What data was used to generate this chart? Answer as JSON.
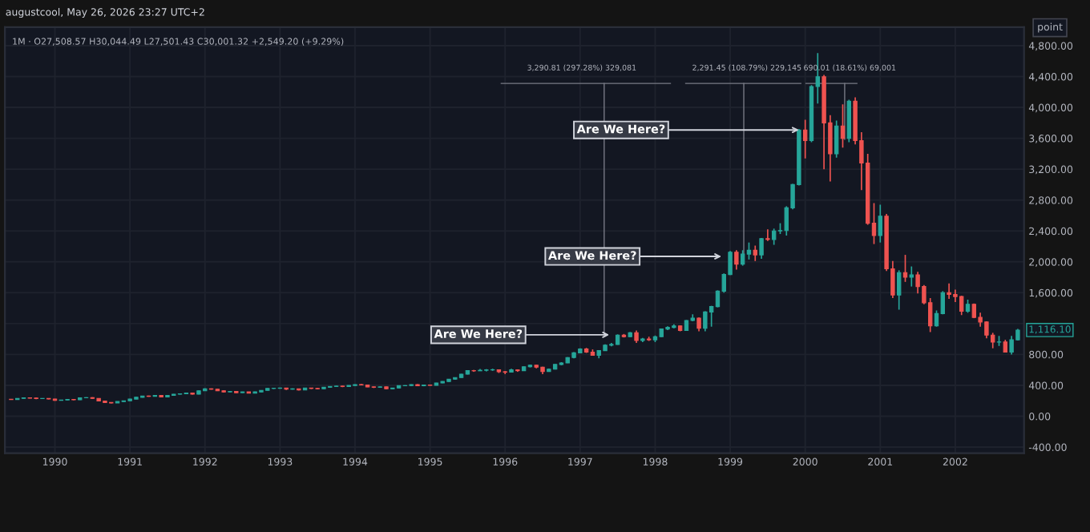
{
  "chart_data": {
    "type": "candlestick",
    "title": "augustcool, May 26, 2026 23:27 UTC+2",
    "subtitle": "1M · O27,508.57 H30,044.49 L27,501.43 C30,001.32 +2,549.20 (+9.29%)",
    "x": [
      "1989-06",
      "1989-07",
      "1989-08",
      "1989-09",
      "1989-10",
      "1989-11",
      "1989-12",
      "1990-01",
      "1990-02",
      "1990-03",
      "1990-04",
      "1990-05",
      "1990-06",
      "1990-07",
      "1990-08",
      "1990-09",
      "1990-10",
      "1990-11",
      "1990-12",
      "1991-01",
      "1991-02",
      "1991-03",
      "1991-04",
      "1991-05",
      "1991-06",
      "1991-07",
      "1991-08",
      "1991-09",
      "1991-10",
      "1991-11",
      "1991-12",
      "1992-01",
      "1992-02",
      "1992-03",
      "1992-04",
      "1992-05",
      "1992-06",
      "1992-07",
      "1992-08",
      "1992-09",
      "1992-10",
      "1992-11",
      "1992-12",
      "1993-01",
      "1993-02",
      "1993-03",
      "1993-04",
      "1993-05",
      "1993-06",
      "1993-07",
      "1993-08",
      "1993-09",
      "1993-10",
      "1993-11",
      "1993-12",
      "1994-01",
      "1994-02",
      "1994-03",
      "1994-04",
      "1994-05",
      "1994-06",
      "1994-07",
      "1994-08",
      "1994-09",
      "1994-10",
      "1994-11",
      "1994-12",
      "1995-01",
      "1995-02",
      "1995-03",
      "1995-04",
      "1995-05",
      "1995-06",
      "1995-07",
      "1995-08",
      "1995-09",
      "1995-10",
      "1995-11",
      "1995-12",
      "1996-01",
      "1996-02",
      "1996-03",
      "1996-04",
      "1996-05",
      "1996-06",
      "1996-07",
      "1996-08",
      "1996-09",
      "1996-10",
      "1996-11",
      "1996-12",
      "1997-01",
      "1997-02",
      "1997-03",
      "1997-04",
      "1997-05",
      "1997-06",
      "1997-07",
      "1997-08",
      "1997-09",
      "1997-10",
      "1997-11",
      "1997-12",
      "1998-01",
      "1998-02",
      "1998-03",
      "1998-04",
      "1998-05",
      "1998-06",
      "1998-07",
      "1998-08",
      "1998-09",
      "1998-10",
      "1998-11",
      "1998-12",
      "1999-01",
      "1999-02",
      "1999-03",
      "1999-04",
      "1999-05",
      "1999-06",
      "1999-07",
      "1999-08",
      "1999-09",
      "1999-10",
      "1999-11",
      "1999-12",
      "2000-01",
      "2000-02",
      "2000-03",
      "2000-04",
      "2000-05",
      "2000-06",
      "2000-07",
      "2000-08",
      "2000-09",
      "2000-10",
      "2000-11",
      "2000-12",
      "2001-01",
      "2001-02",
      "2001-03",
      "2001-04",
      "2001-05",
      "2001-06",
      "2001-07",
      "2001-08",
      "2001-09",
      "2001-10",
      "2001-11",
      "2001-12",
      "2002-01",
      "2002-02",
      "2002-03",
      "2002-04",
      "2002-05",
      "2002-06",
      "2002-07",
      "2002-08",
      "2002-09",
      "2002-10",
      "2002-11"
    ],
    "ohlc": [
      [
        220,
        224,
        214,
        217
      ],
      [
        217,
        233,
        215,
        231
      ],
      [
        231,
        240,
        228,
        237
      ],
      [
        237,
        241,
        232,
        235
      ],
      [
        235,
        242,
        220,
        228
      ],
      [
        228,
        233,
        224,
        229
      ],
      [
        229,
        232,
        219,
        223
      ],
      [
        223,
        225,
        200,
        205
      ],
      [
        205,
        213,
        202,
        210
      ],
      [
        210,
        221,
        207,
        218
      ],
      [
        218,
        222,
        208,
        212
      ],
      [
        212,
        240,
        211,
        238
      ],
      [
        238,
        245,
        234,
        240
      ],
      [
        240,
        246,
        226,
        230
      ],
      [
        230,
        232,
        192,
        197
      ],
      [
        197,
        200,
        176,
        178
      ],
      [
        178,
        181,
        165,
        172
      ],
      [
        172,
        192,
        170,
        190
      ],
      [
        190,
        203,
        187,
        200
      ],
      [
        200,
        225,
        196,
        222
      ],
      [
        222,
        248,
        220,
        245
      ],
      [
        245,
        263,
        240,
        260
      ],
      [
        260,
        268,
        252,
        258
      ],
      [
        258,
        273,
        254,
        270
      ],
      [
        270,
        272,
        246,
        250
      ],
      [
        250,
        274,
        248,
        270
      ],
      [
        270,
        288,
        264,
        285
      ],
      [
        285,
        294,
        281,
        290
      ],
      [
        290,
        304,
        286,
        300
      ],
      [
        300,
        305,
        280,
        285
      ],
      [
        285,
        333,
        282,
        330
      ],
      [
        330,
        362,
        328,
        355
      ],
      [
        355,
        360,
        344,
        350
      ],
      [
        350,
        352,
        326,
        330
      ],
      [
        330,
        334,
        308,
        315
      ],
      [
        315,
        324,
        311,
        320
      ],
      [
        320,
        322,
        300,
        305
      ],
      [
        305,
        318,
        301,
        315
      ],
      [
        315,
        317,
        297,
        300
      ],
      [
        300,
        319,
        298,
        315
      ],
      [
        315,
        338,
        312,
        335
      ],
      [
        335,
        362,
        333,
        360
      ],
      [
        360,
        367,
        352,
        362
      ],
      [
        362,
        370,
        355,
        365
      ],
      [
        365,
        368,
        340,
        350
      ],
      [
        350,
        360,
        345,
        355
      ],
      [
        355,
        357,
        333,
        340
      ],
      [
        340,
        368,
        338,
        365
      ],
      [
        365,
        368,
        352,
        360
      ],
      [
        360,
        364,
        348,
        355
      ],
      [
        355,
        377,
        353,
        375
      ],
      [
        375,
        388,
        370,
        385
      ],
      [
        385,
        395,
        380,
        390
      ],
      [
        390,
        394,
        376,
        385
      ],
      [
        385,
        400,
        382,
        398
      ],
      [
        398,
        413,
        395,
        410
      ],
      [
        410,
        418,
        400,
        405
      ],
      [
        405,
        408,
        376,
        380
      ],
      [
        380,
        385,
        365,
        375
      ],
      [
        375,
        385,
        370,
        380
      ],
      [
        380,
        383,
        350,
        355
      ],
      [
        355,
        368,
        352,
        365
      ],
      [
        365,
        397,
        362,
        395
      ],
      [
        395,
        402,
        390,
        397
      ],
      [
        397,
        413,
        390,
        410
      ],
      [
        410,
        414,
        390,
        395
      ],
      [
        395,
        408,
        388,
        404
      ],
      [
        404,
        408,
        396,
        400
      ],
      [
        400,
        433,
        398,
        430
      ],
      [
        430,
        453,
        428,
        450
      ],
      [
        450,
        483,
        447,
        480
      ],
      [
        480,
        503,
        474,
        500
      ],
      [
        500,
        548,
        498,
        545
      ],
      [
        545,
        595,
        540,
        590
      ],
      [
        590,
        600,
        575,
        588
      ],
      [
        588,
        612,
        585,
        595
      ],
      [
        595,
        610,
        580,
        600
      ],
      [
        600,
        615,
        588,
        602
      ],
      [
        602,
        605,
        560,
        576
      ],
      [
        576,
        585,
        545,
        570
      ],
      [
        570,
        615,
        566,
        600
      ],
      [
        600,
        607,
        575,
        590
      ],
      [
        590,
        645,
        588,
        640
      ],
      [
        640,
        668,
        632,
        660
      ],
      [
        660,
        665,
        620,
        635
      ],
      [
        635,
        640,
        545,
        580
      ],
      [
        580,
        618,
        575,
        610
      ],
      [
        610,
        675,
        605,
        670
      ],
      [
        670,
        700,
        660,
        690
      ],
      [
        690,
        765,
        688,
        760
      ],
      [
        760,
        830,
        750,
        821
      ],
      [
        821,
        880,
        815,
        870
      ],
      [
        870,
        885,
        820,
        830
      ],
      [
        830,
        865,
        785,
        790
      ],
      [
        790,
        855,
        750,
        850
      ],
      [
        850,
        930,
        845,
        920
      ],
      [
        920,
        950,
        905,
        930
      ],
      [
        930,
        1060,
        925,
        1050
      ],
      [
        1050,
        1065,
        1020,
        1030
      ],
      [
        1030,
        1090,
        1025,
        1080
      ],
      [
        1080,
        1110,
        950,
        980
      ],
      [
        980,
        1015,
        960,
        1000
      ],
      [
        1000,
        1030,
        975,
        990
      ],
      [
        990,
        1045,
        960,
        1030
      ],
      [
        1030,
        1135,
        1025,
        1130
      ],
      [
        1130,
        1165,
        1115,
        1150
      ],
      [
        1150,
        1190,
        1140,
        1170
      ],
      [
        1170,
        1175,
        1100,
        1110
      ],
      [
        1110,
        1245,
        1105,
        1240
      ],
      [
        1240,
        1320,
        1230,
        1270
      ],
      [
        1270,
        1280,
        1100,
        1140
      ],
      [
        1140,
        1360,
        1100,
        1350
      ],
      [
        1350,
        1430,
        1160,
        1420
      ],
      [
        1420,
        1630,
        1410,
        1620
      ],
      [
        1620,
        1850,
        1600,
        1836
      ],
      [
        1836,
        2140,
        1830,
        2125
      ],
      [
        2125,
        2150,
        1900,
        1970
      ],
      [
        1970,
        2150,
        1950,
        2100
      ],
      [
        2100,
        2250,
        2030,
        2150
      ],
      [
        2150,
        2210,
        2010,
        2090
      ],
      [
        2090,
        2310,
        2040,
        2300
      ],
      [
        2300,
        2420,
        2270,
        2290
      ],
      [
        2290,
        2430,
        2220,
        2400
      ],
      [
        2400,
        2500,
        2360,
        2405
      ],
      [
        2405,
        2720,
        2340,
        2700
      ],
      [
        2700,
        3010,
        2680,
        3000
      ],
      [
        3000,
        3720,
        2990,
        3708
      ],
      [
        3708,
        3840,
        3340,
        3570
      ],
      [
        3570,
        4290,
        3550,
        4270
      ],
      [
        4270,
        4704,
        4050,
        4398
      ],
      [
        4398,
        4420,
        3200,
        3800
      ],
      [
        3800,
        3900,
        3040,
        3400
      ],
      [
        3400,
        3830,
        3350,
        3760
      ],
      [
        3760,
        4040,
        3480,
        3600
      ],
      [
        3600,
        4100,
        3550,
        4080
      ],
      [
        4080,
        4130,
        3520,
        3570
      ],
      [
        3570,
        3680,
        2930,
        3280
      ],
      [
        3280,
        3400,
        2480,
        2500
      ],
      [
        2500,
        2760,
        2230,
        2340
      ],
      [
        2340,
        2740,
        2250,
        2590
      ],
      [
        2590,
        2620,
        1880,
        1910
      ],
      [
        1910,
        2010,
        1530,
        1570
      ],
      [
        1570,
        1890,
        1380,
        1860
      ],
      [
        1860,
        2090,
        1740,
        1800
      ],
      [
        1800,
        1940,
        1680,
        1830
      ],
      [
        1830,
        1870,
        1590,
        1680
      ],
      [
        1680,
        1700,
        1450,
        1470
      ],
      [
        1470,
        1530,
        1090,
        1170
      ],
      [
        1170,
        1370,
        1160,
        1330
      ],
      [
        1330,
        1620,
        1320,
        1600
      ],
      [
        1600,
        1720,
        1520,
        1577
      ],
      [
        1577,
        1640,
        1480,
        1550
      ],
      [
        1550,
        1560,
        1310,
        1360
      ],
      [
        1360,
        1510,
        1340,
        1450
      ],
      [
        1450,
        1460,
        1270,
        1280
      ],
      [
        1280,
        1340,
        1160,
        1220
      ],
      [
        1220,
        1230,
        1010,
        1050
      ],
      [
        1050,
        1080,
        880,
        960
      ],
      [
        960,
        1040,
        910,
        962
      ],
      [
        962,
        990,
        830,
        830
      ],
      [
        830,
        1040,
        800,
        990
      ],
      [
        990,
        1130,
        980,
        1116.1
      ]
    ],
    "xlim": [
      "1989-05",
      "2002-12"
    ],
    "xticks": [
      "1990",
      "1991",
      "1992",
      "1993",
      "1994",
      "1995",
      "1996",
      "1997",
      "1998",
      "1999",
      "2000",
      "2001",
      "2002"
    ],
    "ylim": [
      -480,
      5040
    ],
    "yticks": [
      {
        "value": -400,
        "label": "-400.00"
      },
      {
        "value": 0,
        "label": "0.00"
      },
      {
        "value": 400,
        "label": "400.00"
      },
      {
        "value": 800,
        "label": "800.00"
      },
      {
        "value": 1200,
        "label": null
      },
      {
        "value": 1600,
        "label": "1,600.00"
      },
      {
        "value": 2000,
        "label": "2,000.00"
      },
      {
        "value": 2400,
        "label": "2,400.00"
      },
      {
        "value": 2800,
        "label": "2,800.00"
      },
      {
        "value": 3200,
        "label": "3,200.00"
      },
      {
        "value": 3600,
        "label": "3,600.00"
      },
      {
        "value": 4000,
        "label": "4,000.00"
      },
      {
        "value": 4400,
        "label": "4,400.00"
      },
      {
        "value": 4800,
        "label": "4,800.00"
      }
    ],
    "grid": true,
    "annotations": [
      "Are We Here?",
      "Are We Here?",
      {
        "text": "Are We Here?",
        "x": "1999-12",
        "y": 3708
      },
      "3,290.81 (297.28%) 329,081",
      "2,291.45 (108.79%) 229,145",
      "690.01 (18.61%) 69,001",
      "1,116.10",
      "point"
    ]
  }
}
